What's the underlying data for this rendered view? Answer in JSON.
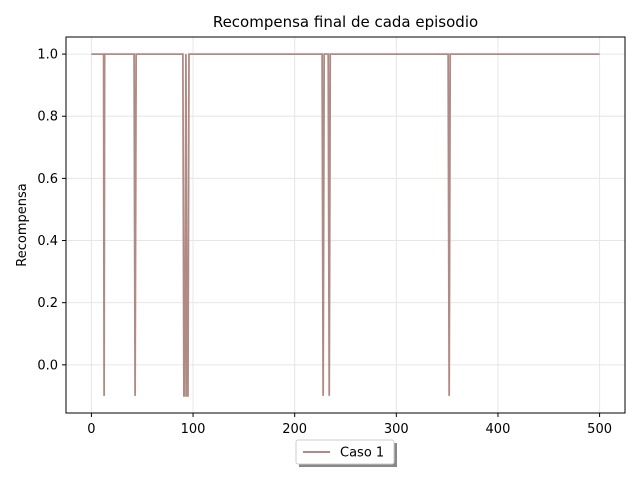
{
  "chart_data": {
    "type": "line",
    "title": "Recompensa final de cada episodio",
    "xlabel": "",
    "ylabel": "Recompensa",
    "xlim": [
      -25,
      525
    ],
    "ylim": [
      -0.155,
      1.055
    ],
    "xticks": [
      0,
      100,
      200,
      300,
      400,
      500
    ],
    "yticks": [
      0.0,
      0.2,
      0.4,
      0.6,
      0.8,
      1.0
    ],
    "xtick_labels": [
      "0",
      "100",
      "200",
      "300",
      "400",
      "500"
    ],
    "ytick_labels": [
      "0.0",
      "0.2",
      "0.4",
      "0.6",
      "0.8",
      "1.0"
    ],
    "grid": true,
    "legend_position": "below-center",
    "series": [
      {
        "name": "Caso 1",
        "color": "#b08a84",
        "points": [
          [
            0,
            1.0
          ],
          [
            12,
            1.0
          ],
          [
            12.5,
            -0.1
          ],
          [
            13,
            1.0
          ],
          [
            14,
            1.0
          ],
          [
            42,
            1.0
          ],
          [
            43,
            -0.1
          ],
          [
            44,
            1.0
          ],
          [
            90,
            1.0
          ],
          [
            91,
            -0.1
          ],
          [
            92,
            -0.1
          ],
          [
            93,
            1.0
          ],
          [
            94,
            -0.1
          ],
          [
            95,
            -0.1
          ],
          [
            96,
            1.0
          ],
          [
            97,
            1.0
          ],
          [
            227,
            1.0
          ],
          [
            228,
            -0.1
          ],
          [
            229,
            1.0
          ],
          [
            233,
            1.0
          ],
          [
            234,
            -0.1
          ],
          [
            235,
            1.0
          ],
          [
            351,
            1.0
          ],
          [
            352,
            -0.1
          ],
          [
            353,
            1.0
          ],
          [
            500,
            1.0
          ]
        ]
      }
    ]
  }
}
